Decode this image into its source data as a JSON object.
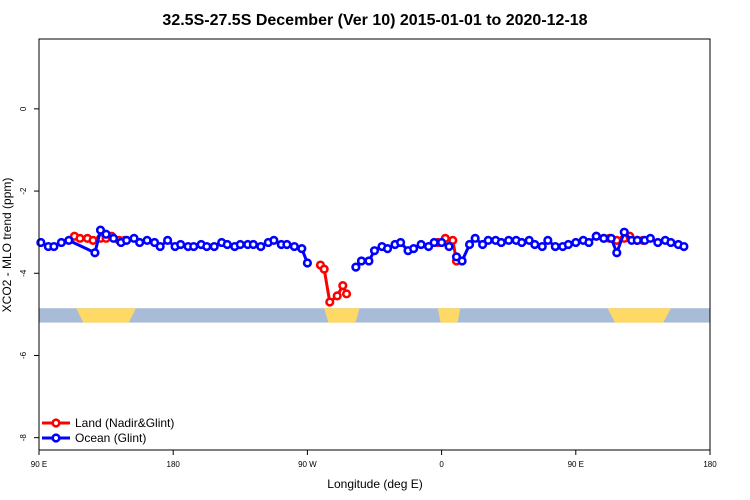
{
  "chart_data": {
    "type": "line",
    "title": "32.5S-27.5S December (Ver 10)   2015-01-01 to 2020-12-18",
    "xlabel": "Longitude (deg E)",
    "ylabel": "XCO2 - MLO trend (ppm)",
    "xlim": [
      90,
      450
    ],
    "ylim": [
      -8.3,
      1.7
    ],
    "x_ticks": [
      {
        "value": 90,
        "label": "90 E"
      },
      {
        "value": 162,
        "label": "180"
      },
      {
        "value": 234,
        "label": "90 W"
      },
      {
        "value": 306,
        "label": "0"
      },
      {
        "value": 378,
        "label": "90 E"
      },
      {
        "value": 450,
        "label": "180"
      }
    ],
    "y_ticks": [
      {
        "value": 0,
        "label": "0"
      },
      {
        "value": -2,
        "label": "-2"
      },
      {
        "value": -4,
        "label": "-4"
      },
      {
        "value": -6,
        "label": "-6"
      },
      {
        "value": -8,
        "label": "-8"
      }
    ],
    "grid": false,
    "legend_position": "bottom-left",
    "land_sea_band": {
      "y_range": [
        -5.2,
        -4.85
      ],
      "ocean_color": "#a8bcd8",
      "land_color": "#ffd966",
      "land_segments": [
        [
          110,
          142
        ],
        [
          243,
          262
        ],
        [
          304,
          316
        ],
        [
          395,
          429
        ]
      ]
    },
    "series": [
      {
        "name": "Land (Nadir&Glint)",
        "color": "#ff0000",
        "segments": [
          [
            [
              109,
              -3.1
            ],
            [
              112,
              -3.15
            ],
            [
              116,
              -3.15
            ],
            [
              119,
              -3.2
            ],
            [
              123,
              -3.15
            ],
            [
              126,
              -3.15
            ],
            [
              129,
              -3.1
            ],
            [
              133,
              -3.2
            ],
            [
              136,
              -3.2
            ]
          ],
          [
            [
              241,
              -3.8
            ],
            [
              243,
              -3.9
            ],
            [
              246,
              -4.7
            ],
            [
              250,
              -4.55
            ],
            [
              253,
              -4.3
            ],
            [
              255,
              -4.5
            ]
          ],
          [
            [
              304,
              -3.25
            ],
            [
              308,
              -3.15
            ],
            [
              312,
              -3.2
            ],
            [
              314,
              -3.7
            ]
          ],
          [
            [
              389,
              -3.1
            ],
            [
              393,
              -3.15
            ],
            [
              396,
              -3.15
            ],
            [
              400,
              -3.2
            ],
            [
              404,
              -3.15
            ],
            [
              407,
              -3.1
            ],
            [
              411,
              -3.2
            ],
            [
              414,
              -3.2
            ]
          ]
        ]
      },
      {
        "name": "Ocean (Glint)",
        "color": "#0000ff",
        "segments": [
          [
            [
              91,
              -3.25
            ],
            [
              95,
              -3.35
            ],
            [
              98,
              -3.35
            ],
            [
              102,
              -3.25
            ],
            [
              106,
              -3.2
            ],
            [
              120,
              -3.5
            ],
            [
              123,
              -2.95
            ],
            [
              126,
              -3.05
            ],
            [
              130,
              -3.15
            ],
            [
              134,
              -3.25
            ],
            [
              137,
              -3.2
            ],
            [
              141,
              -3.15
            ],
            [
              144,
              -3.25
            ],
            [
              148,
              -3.2
            ],
            [
              152,
              -3.25
            ],
            [
              155,
              -3.35
            ],
            [
              159,
              -3.2
            ],
            [
              163,
              -3.35
            ],
            [
              166,
              -3.3
            ],
            [
              170,
              -3.35
            ],
            [
              173,
              -3.35
            ],
            [
              177,
              -3.3
            ],
            [
              180,
              -3.35
            ],
            [
              184,
              -3.35
            ],
            [
              188,
              -3.25
            ],
            [
              191,
              -3.3
            ],
            [
              195,
              -3.35
            ],
            [
              198,
              -3.3
            ],
            [
              202,
              -3.3
            ],
            [
              205,
              -3.3
            ],
            [
              209,
              -3.35
            ],
            [
              213,
              -3.25
            ],
            [
              216,
              -3.2
            ],
            [
              220,
              -3.3
            ],
            [
              223,
              -3.3
            ],
            [
              227,
              -3.35
            ],
            [
              231,
              -3.4
            ],
            [
              234,
              -3.75
            ]
          ],
          [
            [
              260,
              -3.85
            ],
            [
              263,
              -3.7
            ],
            [
              267,
              -3.7
            ],
            [
              270,
              -3.45
            ],
            [
              274,
              -3.35
            ],
            [
              277,
              -3.4
            ],
            [
              281,
              -3.3
            ],
            [
              284,
              -3.25
            ],
            [
              288,
              -3.45
            ],
            [
              291,
              -3.4
            ],
            [
              295,
              -3.3
            ],
            [
              299,
              -3.35
            ],
            [
              302,
              -3.25
            ],
            [
              306,
              -3.25
            ],
            [
              310,
              -3.35
            ]
          ],
          [
            [
              314,
              -3.6
            ],
            [
              317,
              -3.7
            ],
            [
              321,
              -3.3
            ],
            [
              324,
              -3.15
            ],
            [
              328,
              -3.3
            ],
            [
              331,
              -3.2
            ],
            [
              335,
              -3.2
            ],
            [
              338,
              -3.25
            ],
            [
              342,
              -3.2
            ],
            [
              346,
              -3.2
            ],
            [
              349,
              -3.25
            ],
            [
              353,
              -3.2
            ],
            [
              356,
              -3.3
            ],
            [
              360,
              -3.35
            ],
            [
              363,
              -3.2
            ],
            [
              367,
              -3.35
            ],
            [
              371,
              -3.35
            ],
            [
              374,
              -3.3
            ],
            [
              378,
              -3.25
            ],
            [
              382,
              -3.2
            ],
            [
              385,
              -3.25
            ],
            [
              389,
              -3.1
            ],
            [
              393,
              -3.15
            ],
            [
              397,
              -3.15
            ],
            [
              400,
              -3.5
            ],
            [
              404,
              -3.0
            ],
            [
              408,
              -3.2
            ],
            [
              411,
              -3.2
            ],
            [
              415,
              -3.2
            ],
            [
              418,
              -3.15
            ],
            [
              422,
              -3.25
            ],
            [
              426,
              -3.2
            ],
            [
              429,
              -3.25
            ],
            [
              433,
              -3.3
            ],
            [
              436,
              -3.35
            ]
          ]
        ]
      }
    ]
  }
}
